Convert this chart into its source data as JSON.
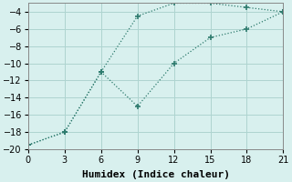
{
  "xlabel": "Humidex (Indice chaleur)",
  "line1_x": [
    0,
    3,
    6,
    9,
    12,
    15,
    18,
    21
  ],
  "line1_y": [
    -19.5,
    -18,
    -11,
    -4.5,
    -3,
    -3,
    -3.5,
    -4
  ],
  "line2_x": [
    0,
    3,
    6,
    9,
    12,
    15,
    18,
    21
  ],
  "line2_y": [
    -19.5,
    -18,
    -11,
    -15,
    -10,
    -7,
    -6,
    -4
  ],
  "color": "#2e7b6e",
  "bg_color": "#d8f0ee",
  "grid_color": "#aed4d0",
  "xlim": [
    0,
    21
  ],
  "ylim": [
    -20,
    -3
  ],
  "xticks": [
    0,
    3,
    6,
    9,
    12,
    15,
    18,
    21
  ],
  "yticks": [
    -20,
    -18,
    -16,
    -14,
    -12,
    -10,
    -8,
    -6,
    -4
  ],
  "marker": "+",
  "markersize": 5,
  "linewidth": 0.9,
  "xlabel_fontsize": 8,
  "tick_fontsize": 7
}
